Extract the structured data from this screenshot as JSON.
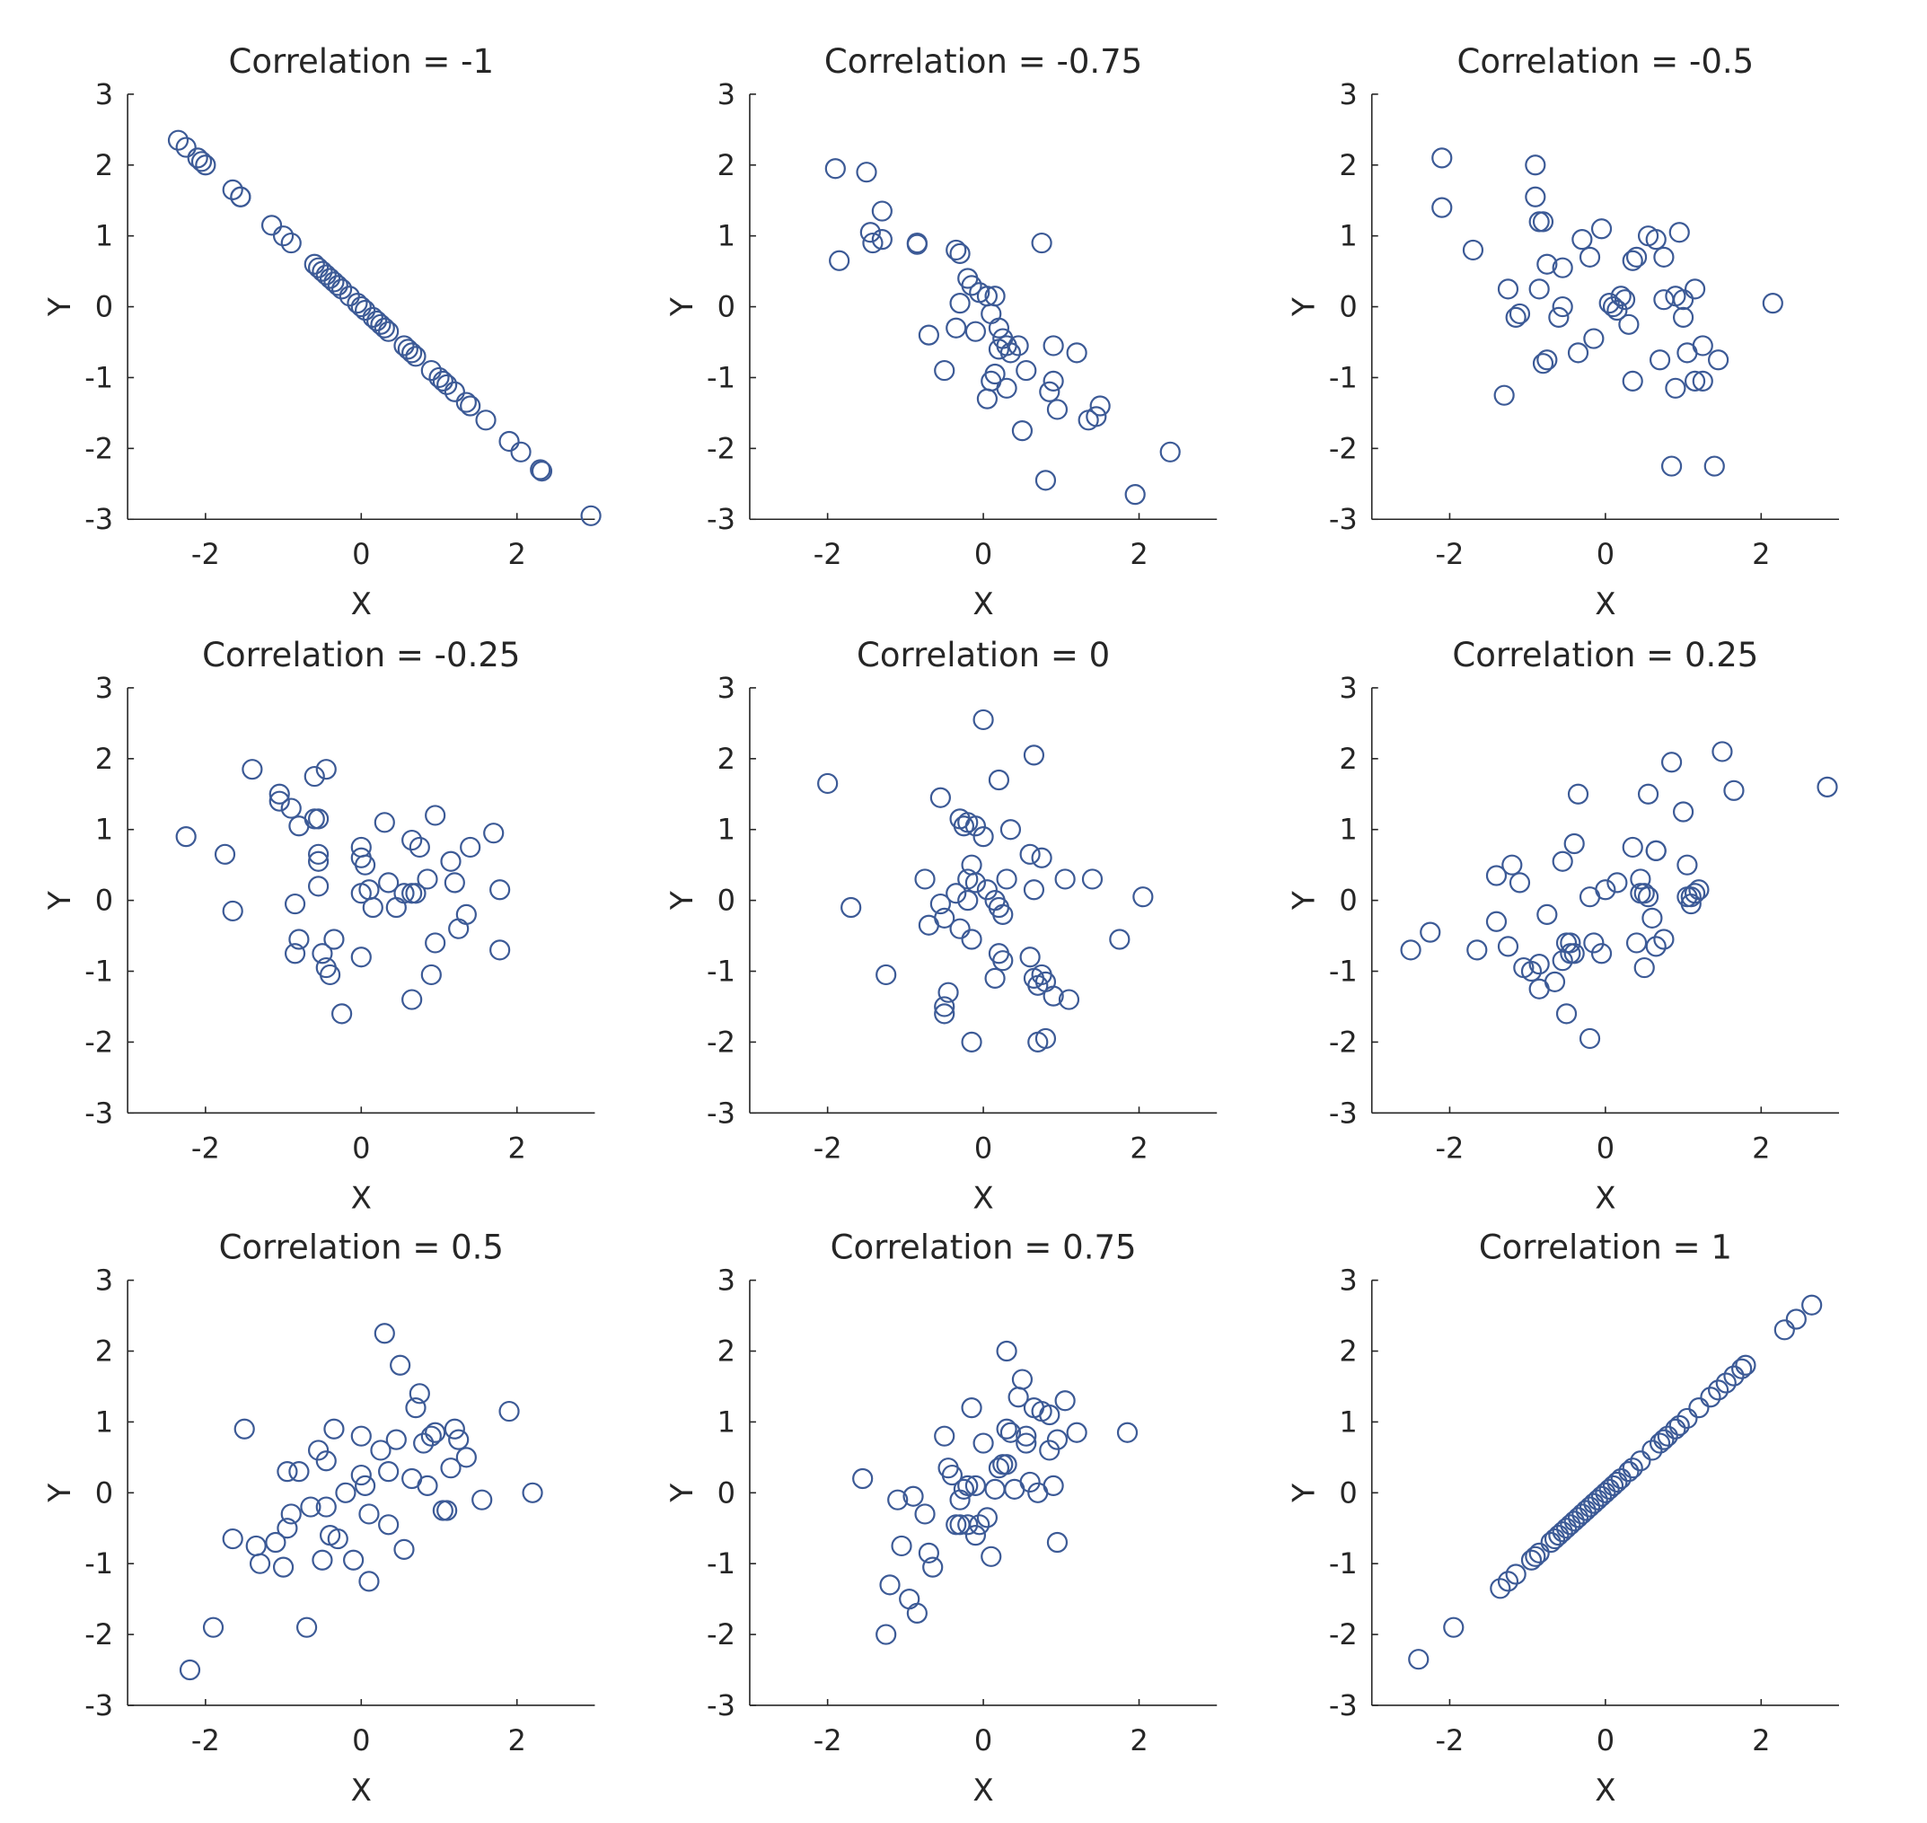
{
  "marker_color": "#3c5a96",
  "chart_data": [
    {
      "type": "scatter",
      "title": "Correlation = -1",
      "xlabel": "X",
      "ylabel": "Y",
      "xlim": [
        -3,
        3
      ],
      "ylim": [
        -3,
        3
      ],
      "xticks": [
        -2,
        0,
        2
      ],
      "yticks": [
        -3,
        -2,
        -1,
        0,
        1,
        2,
        3
      ],
      "x": [
        -2.35,
        -2.25,
        -2.1,
        -2.05,
        -2.0,
        -1.65,
        -1.55,
        -1.55,
        -1.15,
        -1.0,
        -0.9,
        -0.6,
        -0.55,
        -0.5,
        -0.45,
        -0.4,
        -0.35,
        -0.3,
        -0.25,
        -0.15,
        -0.05,
        0.0,
        0.05,
        0.15,
        0.2,
        0.25,
        0.3,
        0.35,
        0.55,
        0.6,
        0.65,
        0.7,
        0.9,
        1.0,
        1.05,
        1.1,
        1.2,
        1.35,
        1.4,
        1.6,
        1.9,
        2.05,
        2.3,
        2.32,
        2.95
      ],
      "y": [
        2.35,
        2.25,
        2.1,
        2.05,
        2.0,
        1.65,
        1.55,
        1.55,
        1.15,
        1.0,
        0.9,
        0.6,
        0.55,
        0.5,
        0.45,
        0.4,
        0.35,
        0.3,
        0.25,
        0.15,
        0.05,
        0.0,
        -0.05,
        -0.15,
        -0.2,
        -0.25,
        -0.3,
        -0.35,
        -0.55,
        -0.6,
        -0.65,
        -0.7,
        -0.9,
        -1.0,
        -1.05,
        -1.1,
        -1.2,
        -1.35,
        -1.4,
        -1.6,
        -1.9,
        -2.05,
        -2.3,
        -2.32,
        -2.95
      ]
    },
    {
      "type": "scatter",
      "title": "Correlation = -0.75",
      "xlabel": "X",
      "ylabel": "Y",
      "xlim": [
        -3,
        3
      ],
      "ylim": [
        -3,
        3
      ],
      "xticks": [
        -2,
        0,
        2
      ],
      "yticks": [
        -3,
        -2,
        -1,
        0,
        1,
        2,
        3
      ],
      "x": [
        -1.9,
        -1.5,
        -1.3,
        -1.45,
        -1.42,
        -1.3,
        -1.85,
        -0.85,
        -0.85,
        -0.35,
        -0.3,
        -0.7,
        -0.5,
        -0.35,
        -0.2,
        -0.15,
        -0.05,
        0.05,
        0.15,
        -0.3,
        -0.1,
        0.1,
        0.2,
        0.25,
        0.3,
        0.2,
        0.35,
        0.45,
        0.1,
        0.15,
        0.3,
        0.55,
        0.5,
        0.05,
        0.75,
        0.9,
        1.2,
        0.85,
        0.9,
        0.95,
        1.5,
        1.45,
        1.35,
        0.8,
        2.4,
        1.95
      ],
      "y": [
        1.95,
        1.9,
        1.35,
        1.05,
        0.9,
        0.95,
        0.65,
        0.9,
        0.88,
        0.8,
        0.75,
        -0.4,
        -0.9,
        -0.3,
        0.4,
        0.3,
        0.2,
        0.15,
        0.15,
        0.05,
        -0.35,
        -0.1,
        -0.3,
        -0.45,
        -0.55,
        -0.6,
        -0.65,
        -0.55,
        -1.05,
        -0.95,
        -1.15,
        -0.9,
        -1.75,
        -1.3,
        0.9,
        -0.55,
        -0.65,
        -1.2,
        -1.05,
        -1.45,
        -1.4,
        -1.55,
        -1.6,
        -2.45,
        -2.05,
        -2.65
      ]
    },
    {
      "type": "scatter",
      "title": "Correlation = -0.5",
      "xlabel": "X",
      "ylabel": "Y",
      "xlim": [
        -3,
        3
      ],
      "ylim": [
        -3,
        3
      ],
      "xticks": [
        -2,
        0,
        2
      ],
      "yticks": [
        -3,
        -2,
        -1,
        0,
        1,
        2,
        3
      ],
      "x": [
        -2.1,
        -2.1,
        -1.7,
        -0.9,
        -0.9,
        -0.85,
        -0.8,
        -0.75,
        -0.55,
        -0.85,
        -1.25,
        -1.15,
        -1.1,
        -0.75,
        -0.6,
        -0.55,
        -0.3,
        -0.2,
        -0.05,
        0.05,
        0.1,
        0.15,
        0.2,
        0.25,
        0.3,
        0.35,
        0.4,
        0.55,
        0.65,
        0.75,
        0.95,
        1.0,
        0.75,
        0.9,
        1.05,
        1.15,
        1.25,
        1.25,
        1.0,
        1.15,
        0.9,
        1.45,
        0.7,
        0.35,
        -0.15,
        -0.35,
        -0.8,
        -1.3,
        0.85,
        1.4,
        2.15
      ],
      "y": [
        2.1,
        1.4,
        0.8,
        2.0,
        1.55,
        1.2,
        1.2,
        0.6,
        0.55,
        0.25,
        0.25,
        -0.15,
        -0.1,
        -0.75,
        -0.15,
        0.0,
        0.95,
        0.7,
        1.1,
        0.05,
        0.0,
        -0.05,
        0.15,
        0.1,
        -0.25,
        0.65,
        0.7,
        1.0,
        0.95,
        0.7,
        1.05,
        0.1,
        0.1,
        0.15,
        -0.65,
        0.25,
        -0.55,
        -1.05,
        -0.15,
        -1.05,
        -1.15,
        -0.75,
        -0.75,
        -1.05,
        -0.45,
        -0.65,
        -0.8,
        -1.25,
        -2.25,
        -2.25,
        0.05
      ]
    },
    {
      "type": "scatter",
      "title": "Correlation = -0.25",
      "xlabel": "X",
      "ylabel": "Y",
      "xlim": [
        -3,
        3
      ],
      "ylim": [
        -3,
        3
      ],
      "xticks": [
        -2,
        0,
        2
      ],
      "yticks": [
        -3,
        -2,
        -1,
        0,
        1,
        2,
        3
      ],
      "x": [
        -2.25,
        -1.75,
        -1.65,
        -1.4,
        -1.05,
        -1.05,
        -0.9,
        -0.8,
        -0.6,
        -0.55,
        -0.45,
        -0.6,
        -0.55,
        -0.55,
        -0.55,
        -0.85,
        -0.8,
        -0.85,
        -0.5,
        -0.45,
        -0.4,
        -0.35,
        0.0,
        0.0,
        0.05,
        0.0,
        0.1,
        0.15,
        0.3,
        0.35,
        0.45,
        0.55,
        0.65,
        0.7,
        0.75,
        0.85,
        0.95,
        0.65,
        0.65,
        0.95,
        1.15,
        1.2,
        1.25,
        1.35,
        1.4,
        1.7,
        1.78,
        1.78,
        -0.25,
        0.0,
        0.9
      ],
      "y": [
        0.9,
        0.65,
        -0.15,
        1.85,
        1.5,
        1.4,
        1.3,
        1.05,
        1.15,
        1.15,
        1.85,
        1.75,
        0.65,
        0.55,
        0.2,
        -0.05,
        -0.55,
        -0.75,
        -0.75,
        -0.95,
        -1.05,
        -0.55,
        0.75,
        0.6,
        0.5,
        0.1,
        0.15,
        -0.1,
        1.1,
        0.25,
        -0.1,
        0.1,
        0.85,
        0.1,
        0.75,
        0.3,
        1.2,
        0.1,
        -1.4,
        -0.6,
        0.55,
        0.25,
        -0.4,
        -0.2,
        0.75,
        0.95,
        0.15,
        -0.7,
        -1.6,
        -0.8,
        -1.05
      ]
    },
    {
      "type": "scatter",
      "title": "Correlation = 0",
      "xlabel": "X",
      "ylabel": "Y",
      "xlim": [
        -3,
        3
      ],
      "ylim": [
        -3,
        3
      ],
      "xticks": [
        -2,
        0,
        2
      ],
      "yticks": [
        -3,
        -2,
        -1,
        0,
        1,
        2,
        3
      ],
      "x": [
        -2.0,
        -1.7,
        -1.25,
        -0.55,
        -0.3,
        -0.25,
        -0.2,
        -0.1,
        -0.15,
        0.0,
        0.2,
        0.35,
        0.6,
        0.65,
        0.75,
        1.05,
        1.4,
        2.05,
        1.75,
        -0.75,
        -0.7,
        -0.55,
        -0.5,
        -0.35,
        -0.3,
        -0.2,
        -0.15,
        -0.2,
        -0.1,
        0.05,
        0.15,
        0.2,
        0.25,
        0.3,
        0.65,
        0.2,
        0.25,
        0.6,
        0.65,
        0.7,
        0.75,
        0.8,
        0.9,
        1.1,
        0.15,
        0.7,
        -0.5,
        -0.5,
        -0.45,
        -0.15,
        0.8,
        0.0
      ],
      "y": [
        1.65,
        -0.1,
        -1.05,
        1.45,
        1.15,
        1.05,
        1.1,
        1.05,
        0.5,
        0.9,
        1.7,
        1.0,
        0.65,
        2.05,
        0.6,
        0.3,
        0.3,
        0.05,
        -0.55,
        0.3,
        -0.35,
        -0.05,
        -0.25,
        0.1,
        -0.4,
        0.0,
        -0.55,
        0.3,
        0.25,
        0.15,
        0.0,
        -0.1,
        -0.2,
        0.3,
        0.15,
        -0.75,
        -0.85,
        -0.8,
        -1.1,
        -1.2,
        -1.05,
        -1.15,
        -1.35,
        -1.4,
        -1.1,
        -2.0,
        -1.5,
        -1.6,
        -1.3,
        -2.0,
        -1.95,
        2.55
      ]
    },
    {
      "type": "scatter",
      "title": "Correlation = 0.25",
      "xlabel": "X",
      "ylabel": "Y",
      "xlim": [
        -3,
        3
      ],
      "ylim": [
        -3,
        3
      ],
      "xticks": [
        -2,
        0,
        2
      ],
      "yticks": [
        -3,
        -2,
        -1,
        0,
        1,
        2,
        3
      ],
      "x": [
        -2.5,
        -2.25,
        -1.65,
        -1.4,
        -1.2,
        -1.1,
        -1.4,
        -1.25,
        -1.05,
        -0.85,
        -0.75,
        -0.55,
        -0.4,
        -0.35,
        -0.2,
        -0.15,
        0.0,
        0.15,
        0.35,
        0.45,
        0.5,
        0.55,
        0.45,
        0.6,
        0.65,
        0.65,
        0.4,
        0.65,
        0.85,
        1.0,
        1.05,
        1.1,
        1.15,
        1.2,
        1.05,
        1.1,
        0.75,
        0.5,
        0.55,
        1.5,
        1.65,
        2.85,
        -0.45,
        -0.5,
        -0.4,
        -0.55,
        -0.65,
        -0.85,
        -0.5,
        -0.2,
        -0.45,
        -0.95,
        -0.05
      ],
      "y": [
        -0.7,
        -0.45,
        -0.7,
        0.35,
        0.5,
        0.25,
        -0.3,
        -0.65,
        -0.95,
        -1.25,
        -0.2,
        0.55,
        0.8,
        1.5,
        0.05,
        -0.6,
        0.15,
        0.25,
        0.75,
        0.3,
        0.1,
        0.05,
        0.1,
        -0.25,
        0.7,
        0.7,
        -0.6,
        -0.65,
        1.95,
        1.25,
        0.5,
        -0.05,
        0.1,
        0.15,
        0.05,
        0.05,
        -0.55,
        -0.95,
        1.5,
        2.1,
        1.55,
        1.6,
        -0.75,
        -0.6,
        -0.75,
        -0.85,
        -1.15,
        -0.9,
        -1.6,
        -1.95,
        -0.6,
        -1.0,
        -0.75
      ]
    },
    {
      "type": "scatter",
      "title": "Correlation = 0.5",
      "xlabel": "X",
      "ylabel": "Y",
      "xlim": [
        -3,
        3
      ],
      "ylim": [
        -3,
        3
      ],
      "xticks": [
        -2,
        0,
        2
      ],
      "yticks": [
        -3,
        -2,
        -1,
        0,
        1,
        2,
        3
      ],
      "x": [
        -2.2,
        -1.9,
        -1.65,
        -1.5,
        -1.35,
        -1.3,
        -1.1,
        -1.0,
        -0.95,
        -0.95,
        -0.9,
        -0.8,
        -0.7,
        -0.65,
        -0.55,
        -0.5,
        -0.45,
        -0.45,
        -0.4,
        -0.35,
        -0.3,
        -0.2,
        -0.1,
        0.0,
        0.0,
        0.05,
        0.1,
        0.25,
        0.3,
        0.35,
        0.35,
        0.45,
        0.5,
        0.55,
        0.65,
        0.7,
        0.75,
        0.8,
        0.85,
        0.9,
        0.95,
        1.05,
        1.1,
        1.15,
        1.2,
        1.25,
        1.35,
        1.55,
        1.9,
        2.2,
        0.1
      ],
      "y": [
        -2.5,
        -1.9,
        -0.65,
        0.9,
        -0.75,
        -1.0,
        -0.7,
        -1.05,
        0.3,
        -0.5,
        -0.3,
        0.3,
        -1.9,
        -0.2,
        0.6,
        -0.95,
        0.45,
        -0.2,
        -0.6,
        0.9,
        -0.65,
        0.0,
        -0.95,
        0.8,
        0.25,
        0.1,
        -0.3,
        0.6,
        2.25,
        0.3,
        -0.45,
        0.75,
        1.8,
        -0.8,
        0.2,
        1.2,
        1.4,
        0.7,
        0.1,
        0.8,
        0.85,
        -0.25,
        -0.25,
        0.35,
        0.9,
        0.75,
        0.5,
        -0.1,
        1.15,
        0.0,
        -1.25
      ]
    },
    {
      "type": "scatter",
      "title": "Correlation = 0.75",
      "xlabel": "X",
      "ylabel": "Y",
      "xlim": [
        -3,
        3
      ],
      "ylim": [
        -3,
        3
      ],
      "xticks": [
        -2,
        0,
        2
      ],
      "yticks": [
        -3,
        -2,
        -1,
        0,
        1,
        2,
        3
      ],
      "x": [
        -1.55,
        -1.25,
        -1.2,
        -1.1,
        -1.05,
        -0.95,
        -0.9,
        -0.85,
        -0.75,
        -0.7,
        -0.65,
        -0.5,
        -0.45,
        -0.4,
        -0.35,
        -0.3,
        -0.25,
        -0.3,
        -0.2,
        -0.15,
        -0.1,
        -0.1,
        -0.05,
        0.0,
        0.05,
        0.1,
        0.15,
        0.2,
        0.25,
        0.3,
        0.3,
        0.35,
        0.4,
        0.45,
        0.5,
        0.55,
        0.55,
        0.6,
        0.65,
        0.7,
        0.75,
        0.85,
        0.85,
        0.9,
        0.95,
        0.95,
        1.05,
        1.2,
        1.85,
        0.3,
        -0.2
      ],
      "y": [
        0.2,
        -2.0,
        -1.3,
        -0.1,
        -0.75,
        -1.5,
        -0.05,
        -1.7,
        -0.3,
        -0.85,
        -1.05,
        0.8,
        0.35,
        0.25,
        -0.45,
        -0.1,
        0.05,
        -0.45,
        0.1,
        1.2,
        0.1,
        -0.6,
        -0.45,
        0.7,
        -0.35,
        -0.9,
        0.05,
        0.35,
        0.4,
        2.0,
        0.9,
        0.85,
        0.05,
        1.35,
        1.6,
        0.8,
        0.7,
        0.15,
        1.2,
        0.0,
        1.15,
        1.1,
        0.6,
        0.1,
        0.75,
        -0.7,
        1.3,
        0.85,
        0.85,
        0.4,
        -0.45
      ]
    },
    {
      "type": "scatter",
      "title": "Correlation = 1",
      "xlabel": "X",
      "ylabel": "Y",
      "xlim": [
        -3,
        3
      ],
      "ylim": [
        -3,
        3
      ],
      "xticks": [
        -2,
        0,
        2
      ],
      "yticks": [
        -3,
        -2,
        -1,
        0,
        1,
        2,
        3
      ],
      "x": [
        -2.4,
        -1.95,
        -1.35,
        -1.25,
        -1.15,
        -0.95,
        -0.9,
        -0.85,
        -0.7,
        -0.65,
        -0.6,
        -0.55,
        -0.5,
        -0.45,
        -0.4,
        -0.35,
        -0.3,
        -0.25,
        -0.2,
        -0.15,
        -0.1,
        -0.05,
        0.0,
        0.05,
        0.1,
        0.15,
        0.2,
        0.3,
        0.35,
        0.45,
        0.6,
        0.7,
        0.75,
        0.8,
        0.9,
        0.95,
        1.05,
        1.2,
        1.35,
        1.45,
        1.55,
        1.65,
        1.75,
        1.8,
        2.3,
        2.45,
        2.65
      ],
      "y": [
        -2.35,
        -1.9,
        -1.35,
        -1.25,
        -1.15,
        -0.95,
        -0.9,
        -0.85,
        -0.7,
        -0.65,
        -0.6,
        -0.55,
        -0.5,
        -0.45,
        -0.4,
        -0.35,
        -0.3,
        -0.25,
        -0.2,
        -0.15,
        -0.1,
        -0.05,
        0.0,
        0.05,
        0.1,
        0.15,
        0.2,
        0.3,
        0.35,
        0.45,
        0.6,
        0.7,
        0.75,
        0.8,
        0.9,
        0.95,
        1.05,
        1.2,
        1.35,
        1.45,
        1.55,
        1.65,
        1.75,
        1.8,
        2.3,
        2.45,
        2.65
      ]
    }
  ]
}
